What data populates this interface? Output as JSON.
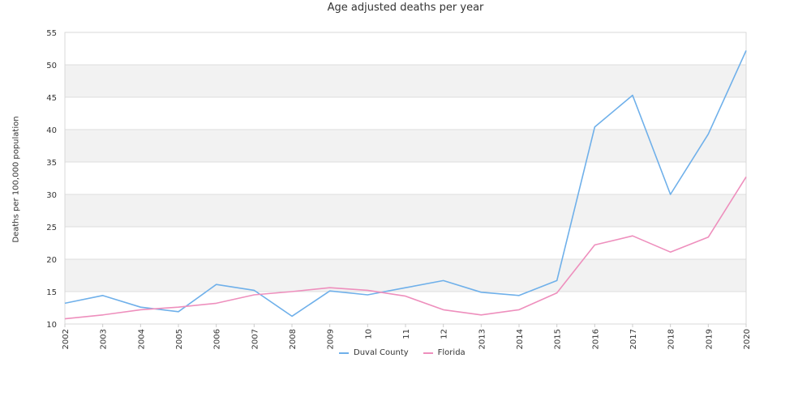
{
  "chart_data": {
    "type": "line",
    "title": "Age adjusted deaths per year",
    "xlabel": "",
    "ylabel": "Deaths per 100,000 population",
    "categories": [
      "2002",
      "2003",
      "2004",
      "2005",
      "2006",
      "2007",
      "2008",
      "2009",
      "10",
      "11",
      "12",
      "2013",
      "2014",
      "2015",
      "2016",
      "2017",
      "2018",
      "2019",
      "2020"
    ],
    "ylim": [
      10,
      55
    ],
    "yticks": [
      "10",
      "15",
      "20",
      "25",
      "30",
      "35",
      "40",
      "45",
      "50",
      "55"
    ],
    "grid": true,
    "legend_position": "bottom",
    "series": [
      {
        "name": "Duval County",
        "color": "#6fb0ea",
        "values": [
          13.2,
          14.4,
          12.6,
          11.9,
          16.1,
          15.2,
          11.2,
          15.1,
          14.5,
          15.6,
          16.7,
          14.9,
          14.4,
          16.7,
          40.4,
          45.3,
          30.0,
          39.3,
          52.2
        ]
      },
      {
        "name": "Florida",
        "color": "#ee8fbd",
        "values": [
          10.8,
          11.4,
          12.2,
          12.6,
          13.2,
          14.5,
          15.0,
          15.6,
          15.2,
          14.3,
          12.2,
          11.4,
          12.2,
          14.8,
          22.2,
          23.6,
          21.1,
          23.4,
          32.7
        ]
      }
    ]
  }
}
